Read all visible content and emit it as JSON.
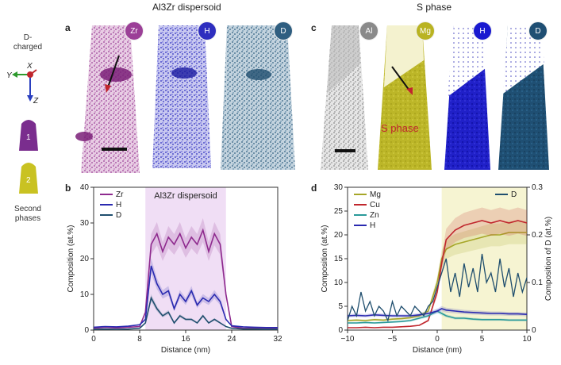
{
  "titles": {
    "left": "Al3Zr dispersoid",
    "right": "S phase"
  },
  "panel_labels": [
    "a",
    "b",
    "c",
    "d"
  ],
  "left_column": {
    "d_charged": "D-\ncharged",
    "axis_x": "X",
    "axis_y": "Y",
    "axis_z": "Z",
    "shape1": "1",
    "shape2": "2",
    "second_phases": "Second\nphases",
    "shape1_color": "#7a2d8e",
    "shape2_color": "#c9c222"
  },
  "panel_a": {
    "maps": [
      {
        "badge": "Zr",
        "color": "#9b3f97"
      },
      {
        "badge": "H",
        "color": "#2e2ebf"
      },
      {
        "badge": "D",
        "color": "#2f5e80"
      }
    ]
  },
  "panel_c": {
    "maps": [
      {
        "badge": "Al",
        "color": "#8a8a8a"
      },
      {
        "badge": "Mg",
        "color": "#b9b322"
      },
      {
        "badge": "H",
        "color": "#1a1ad0"
      },
      {
        "badge": "D",
        "color": "#1f4f73"
      }
    ],
    "annotation": "S phase"
  },
  "chart_data": [
    {
      "type": "line",
      "panel": "b",
      "xlabel": "Distance (nm)",
      "ylabel": "Composition (at.%)",
      "xlim": [
        0,
        32
      ],
      "ylim": [
        0,
        40
      ],
      "xticks": [
        "0",
        "8",
        "16",
        "24",
        "32"
      ],
      "yticks": [
        "0",
        "10",
        "20",
        "30",
        "40"
      ],
      "shaded_region": {
        "x": [
          9,
          23
        ],
        "label": "Al3Zr dispersoid",
        "color": "#f0def5"
      },
      "legend": "top-left",
      "x": [
        0,
        2,
        4,
        6,
        8,
        9,
        10,
        11,
        12,
        13,
        14,
        15,
        16,
        17,
        18,
        19,
        20,
        21,
        22,
        23,
        24,
        26,
        28,
        30,
        32
      ],
      "series": [
        {
          "name": "Zr",
          "color": "#8e2a8e",
          "values": [
            0.5,
            0.8,
            0.6,
            0.8,
            1.0,
            5,
            24,
            27,
            22,
            26,
            24,
            27,
            23,
            26,
            24,
            28,
            22,
            27,
            24,
            10,
            1,
            0.5,
            0.6,
            0.5,
            0.4
          ]
        },
        {
          "name": "H",
          "color": "#2a2ab0",
          "values": [
            0.8,
            1.0,
            0.9,
            1.1,
            1.5,
            3,
            18,
            13,
            10,
            11,
            6,
            10,
            8,
            11,
            7,
            9,
            8,
            10,
            8,
            3,
            1.2,
            0.9,
            0.8,
            0.7,
            0.7
          ]
        },
        {
          "name": "D",
          "color": "#1f4e6e",
          "values": [
            0.2,
            0.3,
            0.2,
            0.3,
            0.5,
            2,
            9,
            6,
            4,
            5,
            2,
            4,
            3,
            3,
            2,
            4,
            2,
            3,
            2,
            1,
            0.5,
            0.3,
            0.3,
            0.2,
            0.2
          ]
        }
      ]
    },
    {
      "type": "line",
      "panel": "d",
      "xlabel": "Distance (nm)",
      "ylabel": "Composition (at.%)",
      "y2label": "Composition of D (at.%)",
      "xlim": [
        -10,
        10
      ],
      "ylim": [
        0,
        30
      ],
      "y2lim": [
        0,
        0.3
      ],
      "xticks": [
        "−10",
        "−5",
        "0",
        "5",
        "10"
      ],
      "yticks": [
        "0",
        "5",
        "10",
        "15",
        "20",
        "25",
        "30"
      ],
      "y2ticks": [
        "0",
        "0.1",
        "0.2",
        "0.3"
      ],
      "shaded_region": {
        "x": [
          0.5,
          10
        ],
        "color": "#f6f4d2"
      },
      "legend": "top-left",
      "x": [
        -10,
        -9,
        -8,
        -7,
        -6,
        -5,
        -4,
        -3,
        -2,
        -1,
        0,
        0.5,
        1,
        2,
        3,
        4,
        5,
        6,
        7,
        8,
        9,
        10
      ],
      "series": [
        {
          "name": "Mg",
          "color": "#a6a628",
          "values": [
            2,
            2.1,
            2,
            2.2,
            2.1,
            2.3,
            2.4,
            2.6,
            3,
            4,
            10,
            15,
            17,
            18,
            18.5,
            19,
            19.5,
            20,
            20,
            20.5,
            20.5,
            20.5
          ]
        },
        {
          "name": "Cu",
          "color": "#c0262d",
          "values": [
            0.5,
            0.5,
            0.6,
            0.5,
            0.6,
            0.6,
            0.7,
            0.8,
            1,
            2,
            8,
            14,
            19,
            21,
            22,
            22.5,
            23,
            22.5,
            23,
            22.5,
            23,
            22.5
          ]
        },
        {
          "name": "Zn",
          "color": "#2a9a9a",
          "values": [
            1.5,
            1.5,
            1.6,
            1.5,
            1.6,
            1.7,
            1.8,
            2,
            2.5,
            3,
            4,
            3.5,
            3,
            2.5,
            2.5,
            2.3,
            2.2,
            2.2,
            2.2,
            2.1,
            2.1,
            2.1
          ]
        },
        {
          "name": "H",
          "color": "#2a2ab0",
          "values": [
            3,
            3.1,
            3,
            3.2,
            3.1,
            3,
            3,
            3,
            3.2,
            3.5,
            4,
            4.5,
            4.2,
            4,
            3.8,
            3.7,
            3.6,
            3.5,
            3.5,
            3.4,
            3.4,
            3.3
          ]
        }
      ],
      "secondary_series": [
        {
          "name": "D",
          "color": "#1f4e6e",
          "axis": "right",
          "x": [
            -10,
            -9.5,
            -9,
            -8.5,
            -8,
            -7.5,
            -7,
            -6.5,
            -6,
            -5.5,
            -5,
            -4.5,
            -4,
            -3.5,
            -3,
            -2.5,
            -2,
            -1.5,
            -1,
            -0.5,
            0,
            0.5,
            1,
            1.5,
            2,
            2.5,
            3,
            3.5,
            4,
            4.5,
            5,
            5.5,
            6,
            6.5,
            7,
            7.5,
            8,
            8.5,
            9,
            9.5,
            10
          ],
          "values": [
            0.02,
            0.05,
            0.03,
            0.08,
            0.04,
            0.06,
            0.03,
            0.05,
            0.04,
            0.02,
            0.06,
            0.03,
            0.05,
            0.04,
            0.03,
            0.05,
            0.04,
            0.03,
            0.05,
            0.06,
            0.09,
            0.12,
            0.15,
            0.08,
            0.12,
            0.07,
            0.14,
            0.09,
            0.13,
            0.08,
            0.16,
            0.1,
            0.12,
            0.08,
            0.15,
            0.09,
            0.13,
            0.07,
            0.12,
            0.08,
            0.11
          ]
        }
      ]
    }
  ]
}
